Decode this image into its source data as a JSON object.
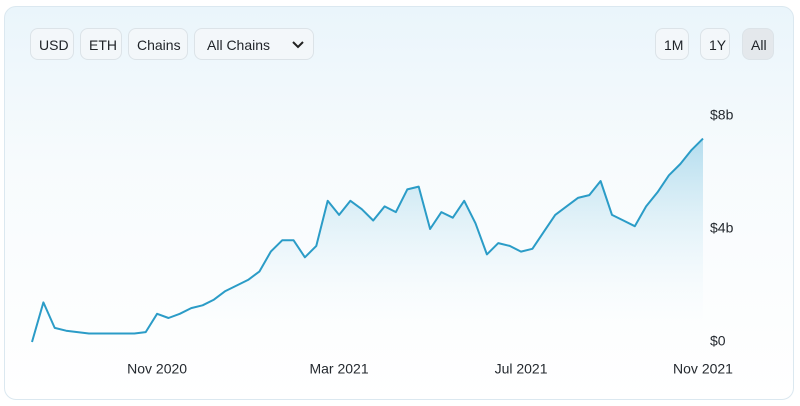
{
  "controls": {
    "left": [
      "USD",
      "ETH",
      "Chains"
    ],
    "dropdown": "All Chains",
    "right": [
      "1M",
      "1Y",
      "All"
    ],
    "selected": "All"
  },
  "chart_data": {
    "type": "line",
    "categories": [
      null,
      null,
      null,
      null,
      null,
      null,
      null,
      null,
      null,
      null,
      null,
      "Nov 2020",
      null,
      null,
      null,
      null,
      null,
      null,
      null,
      null,
      null,
      null,
      null,
      null,
      null,
      null,
      null,
      "Mar 2021",
      null,
      null,
      null,
      null,
      null,
      null,
      null,
      null,
      null,
      null,
      null,
      null,
      null,
      null,
      null,
      "Jul 2021",
      null,
      null,
      null,
      null,
      null,
      null,
      null,
      null,
      null,
      null,
      null,
      null,
      null,
      null,
      null,
      "Nov 2021"
    ],
    "values": [
      0.0,
      1.4,
      0.5,
      0.4,
      0.35,
      0.3,
      0.3,
      0.3,
      0.3,
      0.3,
      0.35,
      1.0,
      0.85,
      1.0,
      1.2,
      1.3,
      1.5,
      1.8,
      2.0,
      2.2,
      2.5,
      3.2,
      3.6,
      3.6,
      3.0,
      3.4,
      5.0,
      4.5,
      5.0,
      4.7,
      4.3,
      4.8,
      4.6,
      5.4,
      5.5,
      4.0,
      4.6,
      4.4,
      5.0,
      4.2,
      3.1,
      3.5,
      3.4,
      3.2,
      3.3,
      3.9,
      4.5,
      4.8,
      5.1,
      5.2,
      5.7,
      4.5,
      4.3,
      4.1,
      4.8,
      5.3,
      5.9,
      6.3,
      6.8,
      7.2
    ],
    "color": "#2b9cc7",
    "ylim": [
      0,
      8
    ],
    "yticks": [
      {
        "value": 0,
        "label": "$0"
      },
      {
        "value": 4,
        "label": "$4b"
      },
      {
        "value": 8,
        "label": "$8b"
      }
    ],
    "grid": false
  }
}
